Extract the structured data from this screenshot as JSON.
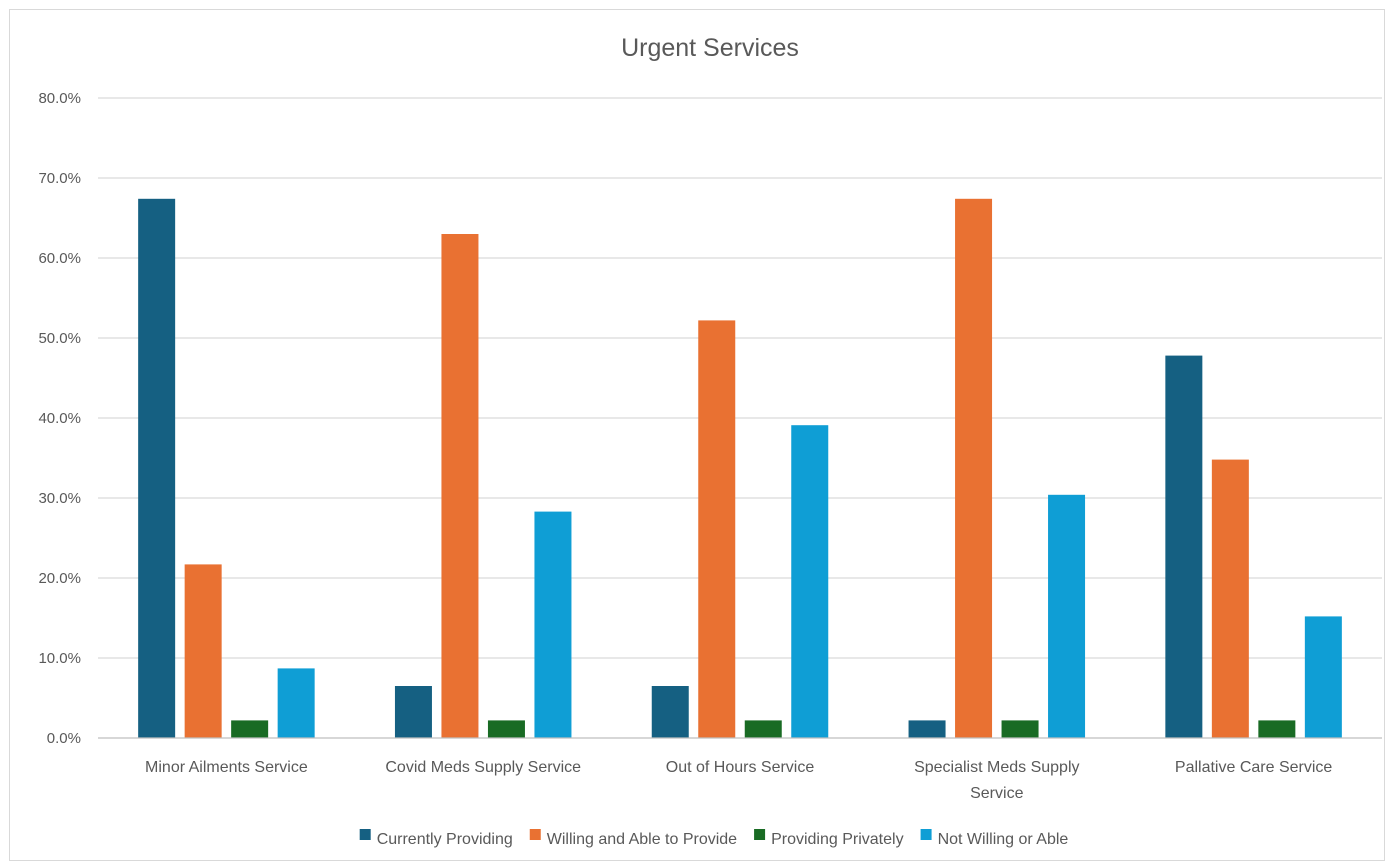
{
  "chart_data": {
    "type": "bar",
    "title": "Urgent Services",
    "xlabel": "",
    "ylabel": "",
    "ylim": [
      0,
      80
    ],
    "y_ticks": [
      "0.0%",
      "10.0%",
      "20.0%",
      "30.0%",
      "40.0%",
      "50.0%",
      "60.0%",
      "70.0%",
      "80.0%"
    ],
    "grid": true,
    "legend_position": "bottom",
    "categories": [
      [
        "Minor Ailments Service"
      ],
      [
        "Covid Meds Supply Service"
      ],
      [
        "Out of Hours Service"
      ],
      [
        "Specialist Meds Supply",
        "Service"
      ],
      [
        "Pallative Care Service"
      ]
    ],
    "series": [
      {
        "name": "Currently Providing",
        "color": "#156082",
        "values": [
          67.4,
          6.5,
          6.5,
          2.2,
          47.8
        ]
      },
      {
        "name": "Willing and Able to Provide",
        "color": "#e97132",
        "values": [
          21.7,
          63.0,
          52.2,
          67.4,
          34.8
        ]
      },
      {
        "name": "Providing Privately",
        "color": "#196b24",
        "values": [
          2.2,
          2.2,
          2.2,
          2.2,
          2.2
        ]
      },
      {
        "name": "Not Willing or Able",
        "color": "#0f9ed5",
        "values": [
          8.7,
          28.3,
          39.1,
          30.4,
          15.2
        ]
      }
    ]
  }
}
